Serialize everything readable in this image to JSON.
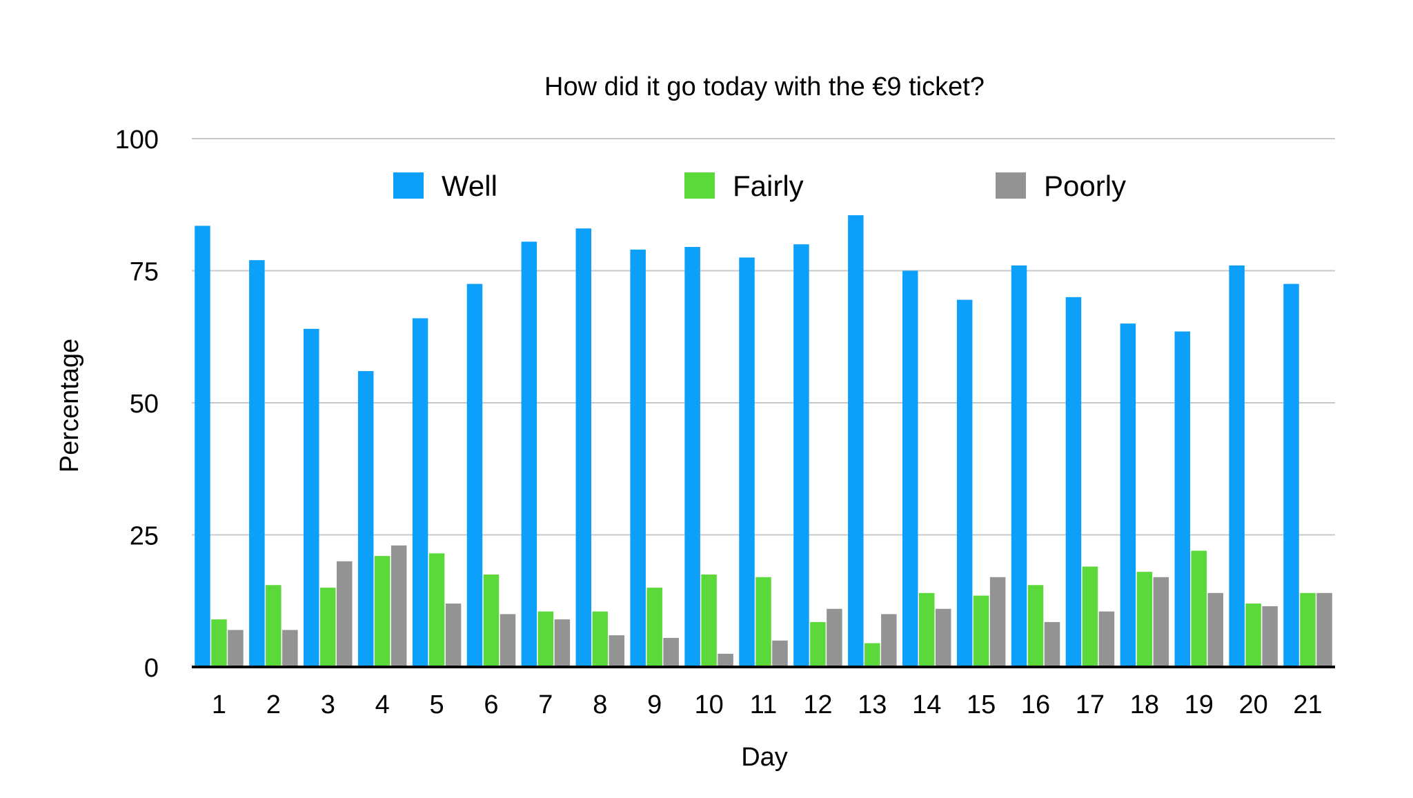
{
  "chart_data": {
    "type": "bar",
    "title": "How did it go today with the €9 ticket?",
    "xlabel": "Day",
    "ylabel": "Percentage",
    "ylim": [
      0,
      100
    ],
    "yticks": [
      0,
      25,
      50,
      75,
      100
    ],
    "grid": true,
    "legend": "top",
    "categories": [
      "1",
      "2",
      "3",
      "4",
      "5",
      "6",
      "7",
      "8",
      "9",
      "10",
      "11",
      "12",
      "13",
      "14",
      "15",
      "16",
      "17",
      "18",
      "19",
      "20",
      "21"
    ],
    "series": [
      {
        "name": "Well",
        "color": "#0ca0fa",
        "values": [
          83.5,
          77,
          64,
          56,
          66,
          72.5,
          80.5,
          83,
          79,
          79.5,
          77.5,
          80,
          85.5,
          75,
          69.5,
          76,
          70,
          65,
          63.5,
          76,
          72.5
        ]
      },
      {
        "name": "Fairly",
        "color": "#5cd93a",
        "values": [
          9,
          15.5,
          15,
          21,
          21.5,
          17.5,
          10.5,
          10.5,
          15,
          17.5,
          17,
          8.5,
          4.5,
          14,
          13.5,
          15.5,
          19,
          18,
          22,
          12,
          14
        ]
      },
      {
        "name": "Poorly",
        "color": "#939393",
        "values": [
          7,
          7,
          20,
          23,
          12,
          10,
          9,
          6,
          5.5,
          2.5,
          5,
          11,
          10,
          11,
          17,
          8.5,
          10.5,
          17,
          14,
          11.5,
          14
        ]
      }
    ]
  }
}
